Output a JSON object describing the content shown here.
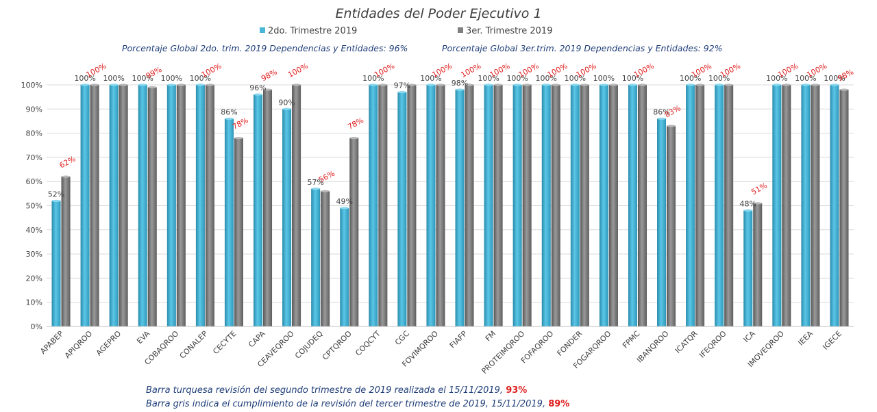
{
  "chart_data": {
    "type": "bar",
    "title": "Entidades del Poder Ejecutivo 1",
    "categories": [
      "APABEP",
      "APIQROO",
      "AGEPRO",
      "EVA",
      "COBAQROO",
      "CONALEP",
      "CECYTE",
      "CAPA",
      "CEAVEQROO",
      "COJUDEQ",
      "CPTQROO",
      "COQCYT",
      "CGC",
      "FOVIMQROO",
      "FIAFP",
      "FM",
      "PROTEIMQROO",
      "FOFAQROO",
      "FONDER",
      "FOGARQROO",
      "FPMC",
      "IBANQROO",
      "ICATQR",
      "IFEQROO",
      "ICA",
      "IMOVEQROO",
      "IEEA",
      "IGECE"
    ],
    "series": [
      {
        "name": "2do. Trimestre 2019",
        "color": "#4bb7d8",
        "values": [
          52,
          100,
          100,
          100,
          100,
          100,
          86,
          96,
          90,
          57,
          49,
          100,
          97,
          100,
          98,
          100,
          100,
          100,
          100,
          100,
          100,
          86,
          100,
          100,
          48,
          100,
          100,
          100
        ],
        "labels": [
          "52%",
          "100%",
          "100%",
          "100%",
          "100%",
          "100%",
          "86%",
          "96%",
          "90%",
          "57%",
          "49%",
          "100%",
          "97%",
          "100%",
          "98%",
          "100%",
          "100%",
          "100%",
          "100%",
          "100%",
          "100%",
          "86%",
          "100%",
          "100%",
          "48%",
          "100%",
          "100%",
          "100%"
        ]
      },
      {
        "name": "3er. Trimestre 2019",
        "color": "#7f7f7f",
        "values": [
          62,
          100,
          100,
          99,
          100,
          100,
          78,
          98,
          100,
          56,
          78,
          100,
          100,
          100,
          100,
          100,
          100,
          100,
          100,
          100,
          100,
          83,
          100,
          100,
          51,
          100,
          100,
          98
        ],
        "labels": [
          "62%",
          "100%",
          "",
          "99%",
          "",
          "100%",
          "78%",
          "98%",
          "100%",
          "56%",
          "78%",
          "100%",
          "",
          "100%",
          "100%",
          "100%",
          "100%",
          "100%",
          "100%",
          "",
          "100%",
          "83%",
          "100%",
          "100%",
          "51%",
          "100%",
          "100%",
          "98%"
        ]
      }
    ],
    "ylim": [
      0,
      100
    ],
    "yticks": [
      "0%",
      "10%",
      "20%",
      "30%",
      "40%",
      "50%",
      "60%",
      "70%",
      "80%",
      "90%",
      "100%"
    ],
    "grid": true,
    "legend": "top",
    "xlabel": "",
    "ylabel": ""
  },
  "global": {
    "q2": "Porcentaje Global 2do. trim.  2019 Dependencias y Entidades: 96%",
    "q3": "Porcentaje Global  3er.trim.  2019 Dependencias y Entidades: 92%"
  },
  "notes": {
    "line1_text": "Barra turquesa  revisión  del segundo  trimestre de 2019 realizada el  15/11/2019, ",
    "line1_value": "93%",
    "line2_text": "Barra gris indica el cumplimiento  de la revisión  del tercer trimestre de 2019,  15/11/2019, ",
    "line2_value": "89%"
  }
}
